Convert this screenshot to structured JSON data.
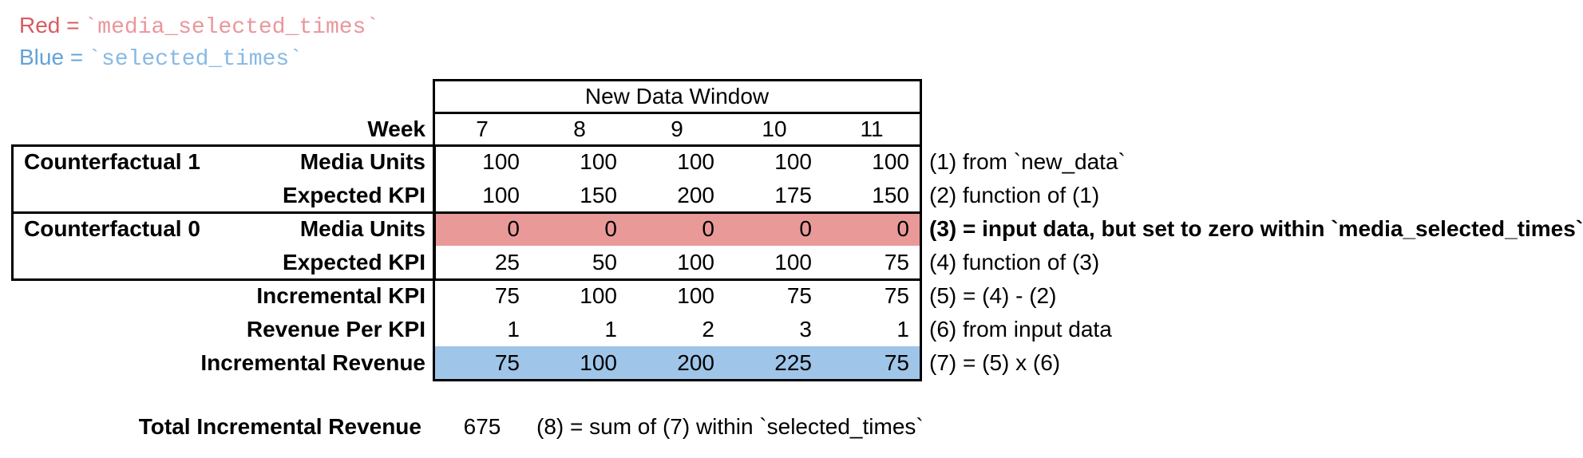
{
  "legend": {
    "red_label": "Red =",
    "red_code": "`media_selected_times`",
    "red_label_color": "#d85b62",
    "red_code_color": "#ea969c",
    "blue_label": "Blue =",
    "blue_code": "`selected_times`",
    "blue_label_color": "#63a3d9",
    "blue_code_color": "#87b9e5"
  },
  "colors": {
    "red_row_fill": "#ea9999",
    "blue_row_fill": "#9fc5e8",
    "table_border": "#000000"
  },
  "table": {
    "window_title": "New Data Window",
    "week_label": "Week",
    "weeks": [
      "7",
      "8",
      "9",
      "10",
      "11"
    ],
    "rows": [
      {
        "group": "Counterfactual 1",
        "label": "Media Units",
        "values": [
          "100",
          "100",
          "100",
          "100",
          "100"
        ],
        "annotation": "(1) from `new_data`"
      },
      {
        "group": "",
        "label": "Expected KPI",
        "values": [
          "100",
          "150",
          "200",
          "175",
          "150"
        ],
        "annotation": "(2) function of (1)"
      },
      {
        "group": "Counterfactual 0",
        "label": "Media Units",
        "values": [
          "0",
          "0",
          "0",
          "0",
          "0"
        ],
        "highlight": "red",
        "annotation": "(3) = input data, but set to zero within `media_selected_times`"
      },
      {
        "group": "",
        "label": "Expected KPI",
        "values": [
          "25",
          "50",
          "100",
          "100",
          "75"
        ],
        "annotation": "(4) function of (3)"
      },
      {
        "group": "",
        "label": "Incremental KPI",
        "values": [
          "75",
          "100",
          "100",
          "75",
          "75"
        ],
        "annotation": "(5) = (4) - (2)"
      },
      {
        "group": "",
        "label": "Revenue Per KPI",
        "values": [
          "1",
          "1",
          "2",
          "3",
          "1"
        ],
        "annotation": "(6) from input data"
      },
      {
        "group": "",
        "label": "Incremental Revenue",
        "values": [
          "75",
          "100",
          "200",
          "225",
          "75"
        ],
        "highlight": "blue",
        "annotation": "(7) = (5) x (6)"
      }
    ]
  },
  "total": {
    "label": "Total Incremental Revenue",
    "value": "675",
    "annotation": "(8) = sum of (7) within `selected_times`"
  }
}
